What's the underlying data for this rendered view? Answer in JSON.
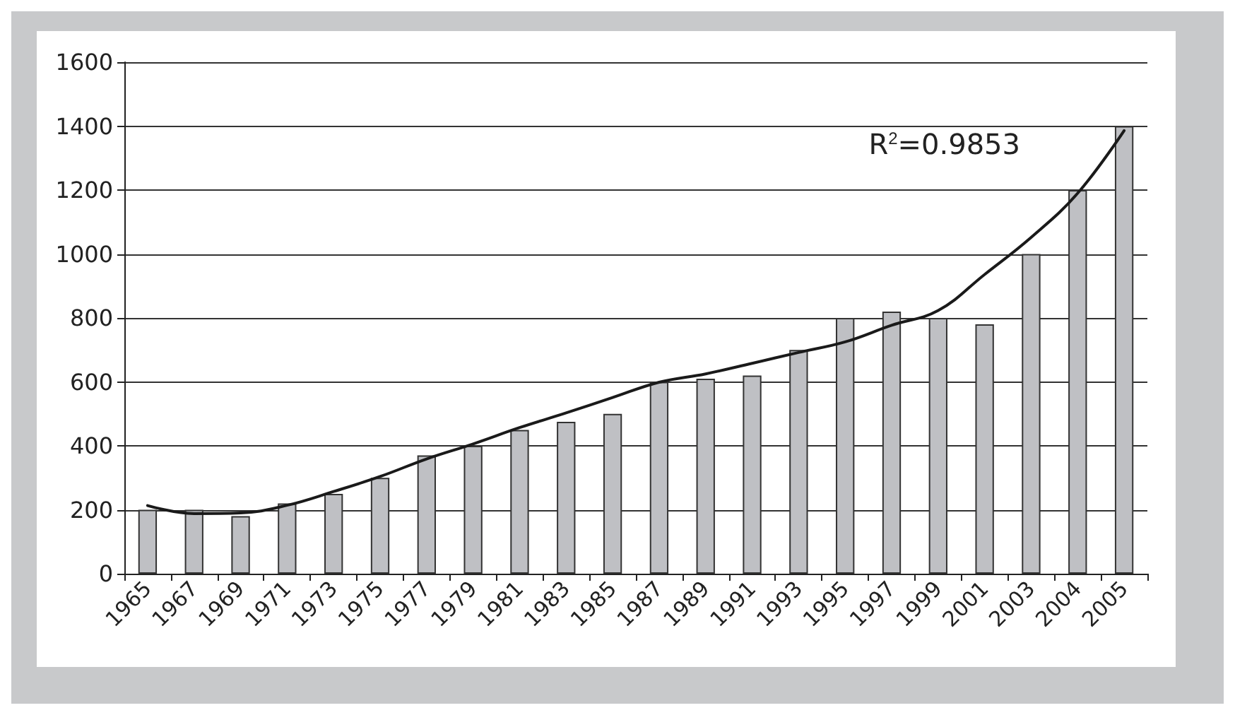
{
  "chart_data": {
    "type": "bar",
    "categories": [
      "1965",
      "1967",
      "1969",
      "1971",
      "1973",
      "1975",
      "1977",
      "1979",
      "1981",
      "1983",
      "1985",
      "1987",
      "1989",
      "1991",
      "1993",
      "1995",
      "1997",
      "1999",
      "2001",
      "2003",
      "2004",
      "2005"
    ],
    "series": [
      {
        "color": "#bfc0c4",
        "values": [
          200,
          200,
          180,
          220,
          250,
          300,
          370,
          400,
          450,
          475,
          500,
          600,
          610,
          620,
          700,
          800,
          820,
          800,
          780,
          1000,
          1200,
          1400
        ]
      },
      {
        "type": "line",
        "color": "#1a1a1a",
        "marker": "none",
        "line_style": "solid",
        "values": [
          213,
          188,
          190,
          214,
          257,
          304,
          359,
          406,
          457,
          503,
          551,
          599,
          625,
          658,
          692,
          725,
          777,
          823,
          936,
          1052,
          1190,
          1386
        ]
      }
    ],
    "ylim": [
      0,
      1600
    ],
    "yticks": [
      0,
      200,
      400,
      600,
      800,
      1000,
      1200,
      1400,
      1600
    ],
    "grid": "y",
    "annotations": [
      "R$^{2}$=0.9853"
    ]
  }
}
